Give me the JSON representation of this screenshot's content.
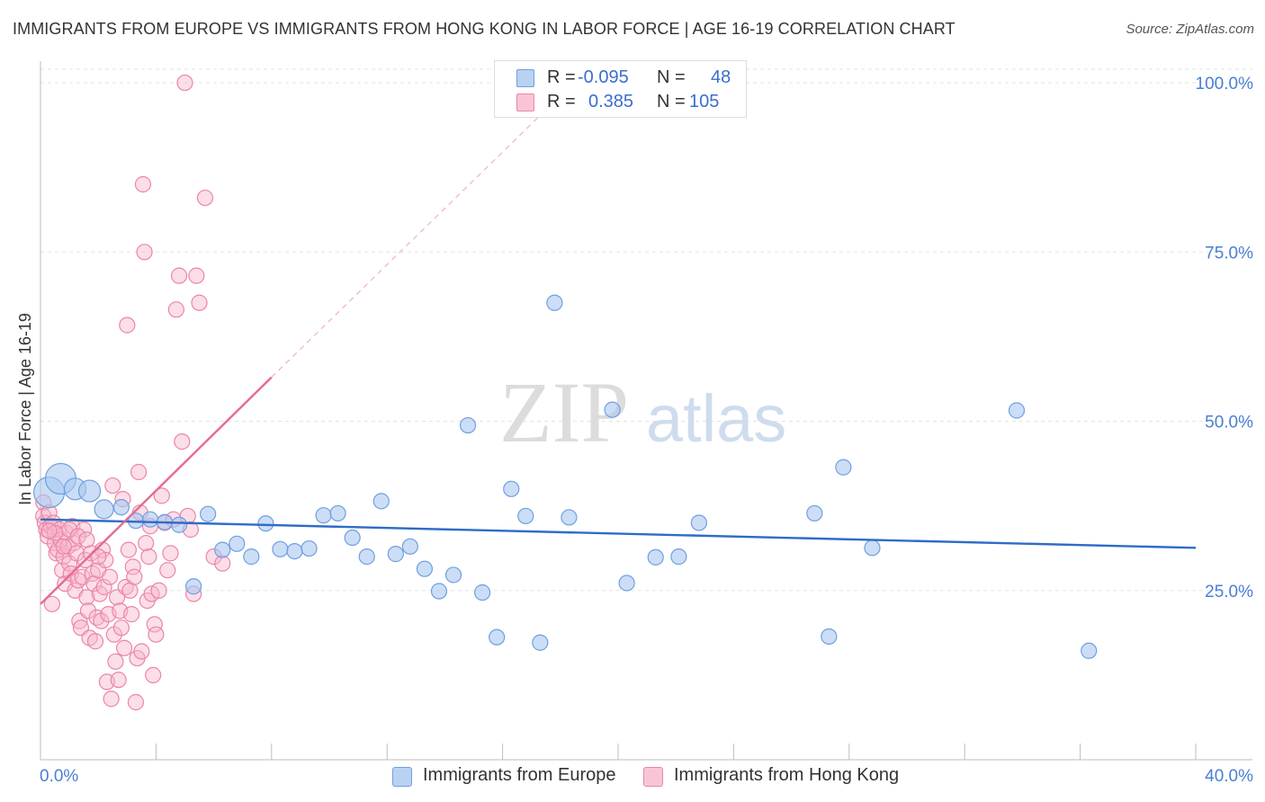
{
  "header": {
    "title": "IMMIGRANTS FROM EUROPE VS IMMIGRANTS FROM HONG KONG IN LABOR FORCE | AGE 16-19 CORRELATION CHART",
    "source": "Source: ZipAtlas.com"
  },
  "watermark": {
    "zip": "ZIP",
    "atlas": "atlas"
  },
  "legend": {
    "europe": {
      "r_label": "R =",
      "r_value": "-0.095",
      "n_label": "N =",
      "n_value": "48"
    },
    "hongkong": {
      "r_label": "R =",
      "r_value": "0.385",
      "n_label": "N =",
      "n_value": "105"
    }
  },
  "bottom_legend": {
    "europe": "Immigrants from Europe",
    "hongkong": "Immigrants from Hong Kong"
  },
  "colors": {
    "europe_fill": "#a9c8f0",
    "europe_stroke": "#6f9fe0",
    "europe_line": "#2f6cc6",
    "hongkong_fill": "#f7b6cb",
    "hongkong_stroke": "#ec85a6",
    "hongkong_line": "#e56a92",
    "axis_label": "#4a7fd4"
  },
  "chart_data": {
    "type": "scatter",
    "title": "IMMIGRANTS FROM EUROPE VS IMMIGRANTS FROM HONG KONG IN LABOR FORCE | AGE 16-19 CORRELATION CHART",
    "xlabel": "",
    "ylabel": "In Labor Force | Age 16-19",
    "xlim": [
      0,
      40
    ],
    "ylim": [
      0,
      102
    ],
    "x_tick_labels": [
      "0.0%",
      "40.0%"
    ],
    "y_tick_labels": [
      "25.0%",
      "50.0%",
      "75.0%",
      "100.0%"
    ],
    "y_ticks": [
      25,
      50,
      75,
      100
    ],
    "series": [
      {
        "name": "Immigrants from Europe",
        "points": [
          [
            0.3,
            39.5,
            3
          ],
          [
            0.7,
            41.5,
            3
          ],
          [
            1.2,
            40,
            2
          ],
          [
            1.7,
            39.7,
            2
          ],
          [
            2.2,
            37.0,
            1.5
          ],
          [
            2.8,
            37.3,
            1
          ],
          [
            3.3,
            35.3,
            1
          ],
          [
            3.8,
            35.5,
            1
          ],
          [
            4.3,
            35.1,
            1
          ],
          [
            4.8,
            34.7,
            1
          ],
          [
            5.3,
            25.6,
            1
          ],
          [
            5.8,
            36.3,
            1
          ],
          [
            6.3,
            31.0,
            1
          ],
          [
            6.8,
            31.9,
            1
          ],
          [
            7.3,
            30.0,
            1
          ],
          [
            7.8,
            34.9,
            1
          ],
          [
            8.3,
            31.1,
            1
          ],
          [
            8.8,
            30.8,
            1
          ],
          [
            9.3,
            31.2,
            1
          ],
          [
            9.8,
            36.1,
            1
          ],
          [
            10.3,
            36.4,
            1
          ],
          [
            10.8,
            32.8,
            1
          ],
          [
            11.3,
            30.0,
            1
          ],
          [
            11.8,
            38.2,
            1
          ],
          [
            12.3,
            30.4,
            1
          ],
          [
            12.8,
            31.5,
            1
          ],
          [
            13.3,
            28.2,
            1
          ],
          [
            13.8,
            24.9,
            1
          ],
          [
            14.3,
            27.3,
            1
          ],
          [
            14.8,
            49.4,
            1
          ],
          [
            15.3,
            24.7,
            1
          ],
          [
            15.8,
            18.1,
            1
          ],
          [
            16.3,
            40.0,
            1
          ],
          [
            16.8,
            36.0,
            1
          ],
          [
            17.3,
            17.3,
            1
          ],
          [
            17.8,
            67.5,
            1
          ],
          [
            18.3,
            35.8,
            1
          ],
          [
            19.8,
            51.7,
            1
          ],
          [
            20.3,
            26.1,
            1
          ],
          [
            21.3,
            29.9,
            1
          ],
          [
            22.1,
            30.0,
            1
          ],
          [
            22.8,
            35.0,
            1
          ],
          [
            26.8,
            36.4,
            1
          ],
          [
            27.3,
            18.2,
            1
          ],
          [
            27.8,
            43.2,
            1
          ],
          [
            28.8,
            31.3,
            1
          ],
          [
            33.8,
            51.6,
            1
          ],
          [
            36.3,
            16.1,
            1
          ]
        ]
      },
      {
        "name": "Immigrants from Hong Kong",
        "points": [
          [
            0.1,
            38.0
          ],
          [
            0.1,
            36.0
          ],
          [
            0.15,
            35.0
          ],
          [
            0.2,
            34.0
          ],
          [
            0.25,
            33.0
          ],
          [
            0.3,
            36.5
          ],
          [
            0.35,
            34.5
          ],
          [
            0.4,
            23.0
          ],
          [
            0.45,
            35.0
          ],
          [
            0.5,
            32.0
          ],
          [
            0.55,
            30.5
          ],
          [
            0.6,
            31.0
          ],
          [
            0.65,
            34.0
          ],
          [
            0.7,
            32.5
          ],
          [
            0.75,
            28.0
          ],
          [
            0.8,
            30.0
          ],
          [
            0.85,
            26.0
          ],
          [
            0.9,
            33.5
          ],
          [
            0.95,
            31.5
          ],
          [
            1.0,
            29.0
          ],
          [
            1.05,
            27.5
          ],
          [
            1.1,
            34.5
          ],
          [
            1.15,
            32.0
          ],
          [
            1.2,
            25.0
          ],
          [
            1.25,
            30.5
          ],
          [
            1.3,
            26.5
          ],
          [
            1.35,
            20.5
          ],
          [
            1.4,
            19.5
          ],
          [
            1.45,
            27.0
          ],
          [
            1.5,
            34.0
          ],
          [
            1.55,
            29.5
          ],
          [
            1.6,
            24.0
          ],
          [
            1.65,
            22.0
          ],
          [
            1.7,
            18.0
          ],
          [
            1.75,
            30.5
          ],
          [
            1.8,
            27.5
          ],
          [
            1.85,
            26.0
          ],
          [
            1.9,
            17.5
          ],
          [
            1.95,
            21.0
          ],
          [
            2.0,
            28.0
          ],
          [
            2.05,
            24.5
          ],
          [
            2.1,
            20.5
          ],
          [
            2.15,
            31.0
          ],
          [
            2.2,
            25.5
          ],
          [
            2.25,
            29.5
          ],
          [
            2.3,
            11.5
          ],
          [
            2.35,
            21.5
          ],
          [
            2.4,
            27.0
          ],
          [
            2.45,
            9.0
          ],
          [
            2.5,
            40.5
          ],
          [
            2.55,
            18.5
          ],
          [
            2.6,
            14.5
          ],
          [
            2.65,
            24.0
          ],
          [
            2.7,
            11.8
          ],
          [
            2.75,
            22.0
          ],
          [
            2.8,
            19.5
          ],
          [
            2.85,
            38.5
          ],
          [
            2.9,
            16.5
          ],
          [
            2.95,
            25.5
          ],
          [
            3.0,
            64.2
          ],
          [
            3.05,
            31.0
          ],
          [
            3.1,
            25.0
          ],
          [
            3.15,
            21.5
          ],
          [
            3.2,
            28.5
          ],
          [
            3.25,
            27.0
          ],
          [
            3.3,
            8.5
          ],
          [
            3.35,
            15.0
          ],
          [
            3.4,
            42.5
          ],
          [
            3.45,
            36.5
          ],
          [
            3.5,
            16.0
          ],
          [
            3.55,
            85.0
          ],
          [
            3.6,
            75.0
          ],
          [
            3.65,
            32.0
          ],
          [
            3.7,
            23.5
          ],
          [
            3.75,
            30.0
          ],
          [
            3.8,
            34.5
          ],
          [
            3.85,
            24.5
          ],
          [
            3.9,
            12.5
          ],
          [
            3.95,
            20.0
          ],
          [
            4.0,
            18.5
          ],
          [
            4.1,
            25.0
          ],
          [
            4.2,
            39.0
          ],
          [
            4.3,
            35.0
          ],
          [
            4.4,
            28.0
          ],
          [
            4.5,
            30.5
          ],
          [
            4.6,
            35.5
          ],
          [
            4.7,
            66.5
          ],
          [
            4.8,
            71.5
          ],
          [
            4.9,
            47.0
          ],
          [
            5.0,
            100.0
          ],
          [
            5.1,
            36.0
          ],
          [
            5.2,
            34.0
          ],
          [
            5.3,
            24.5
          ],
          [
            5.4,
            71.5
          ],
          [
            5.5,
            67.5
          ],
          [
            5.7,
            83.0
          ],
          [
            6.0,
            30.0
          ],
          [
            6.3,
            29.0
          ],
          [
            1.0,
            34.0
          ],
          [
            0.5,
            33.5
          ],
          [
            1.3,
            33.0
          ],
          [
            0.8,
            31.5
          ],
          [
            1.6,
            32.5
          ],
          [
            2.0,
            30.0
          ],
          [
            0.3,
            33.8
          ]
        ]
      }
    ],
    "trend_lines": [
      {
        "series": "Immigrants from Europe",
        "x": [
          0,
          40
        ],
        "y": [
          35.5,
          31.3
        ]
      },
      {
        "series": "Immigrants from Hong Kong",
        "x": [
          0,
          8
        ],
        "y": [
          23.0,
          56.5
        ],
        "dashed_extension_to": [
          17.5,
          96.0
        ]
      }
    ]
  }
}
